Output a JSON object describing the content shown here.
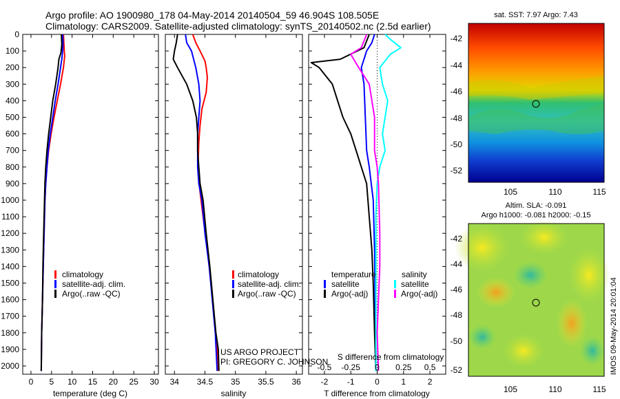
{
  "header": {
    "line1": "Argo profile: AO 1900980_178 04-May-2014 20140504_59 46.904S 108.505E",
    "line2": "Climatology: CARS2009. Satellite-adjusted climatology: synTS_20140502.nc (2.5d earlier)"
  },
  "colors": {
    "climatology": "#ff0000",
    "satellite": "#0000ff",
    "argo": "#000000",
    "salinity_satellite": "#00ffff",
    "salinity_argo": "#ff00ff"
  },
  "depth_ticks": [
    "0",
    "100",
    "200",
    "300",
    "400",
    "500",
    "600",
    "700",
    "800",
    "900",
    "1000",
    "1100",
    "1200",
    "1300",
    "1400",
    "1500",
    "1600",
    "1700",
    "1800",
    "1900",
    "2000"
  ],
  "credits": {
    "project": "US ARGO PROJECT",
    "pi": "PI: GREGORY C. JOHNSON",
    "stamp": "IMOS 09-May-2014 20:01:04"
  },
  "maps": {
    "sst": {
      "title": "sat. SST: 7.97 Argo: 7.43",
      "yticks": [
        "-42",
        "-44",
        "-46",
        "-48",
        "-50",
        "-52"
      ],
      "xticks": [
        "105",
        "110",
        "115"
      ]
    },
    "sla": {
      "title1": "Altim. SLA: -0.091",
      "title2": "Argo h1000: -0.081 h2000: -0.15",
      "yticks": [
        "-42",
        "-44",
        "-46",
        "-48",
        "-50",
        "-52"
      ],
      "xticks": [
        "105",
        "110",
        "115"
      ]
    }
  },
  "chart_data": [
    {
      "type": "line",
      "xlabel": "temperature (deg C)",
      "xticks": [
        "0",
        "5",
        "10",
        "15",
        "20",
        "25",
        "30"
      ],
      "xlim": [
        -2,
        31
      ],
      "ylim": [
        2050,
        0
      ],
      "legend": [
        "climatology",
        "satellite-adj. clim.",
        "Argo(..raw -QC)"
      ],
      "series": [
        {
          "name": "climatology",
          "color": "red",
          "points": [
            [
              7.9,
              0
            ],
            [
              8.0,
              50
            ],
            [
              8.1,
              100
            ],
            [
              8.2,
              130
            ],
            [
              7.9,
              200
            ],
            [
              7.2,
              300
            ],
            [
              6.4,
              400
            ],
            [
              5.6,
              500
            ],
            [
              4.9,
              600
            ],
            [
              4.3,
              700
            ],
            [
              3.9,
              800
            ],
            [
              3.6,
              900
            ],
            [
              3.4,
              1000
            ],
            [
              3.2,
              1200
            ],
            [
              3.0,
              1400
            ],
            [
              2.8,
              1600
            ],
            [
              2.6,
              1800
            ],
            [
              2.5,
              2030
            ]
          ]
        },
        {
          "name": "satellite-adj. clim.",
          "color": "blue",
          "points": [
            [
              7.7,
              0
            ],
            [
              7.8,
              50
            ],
            [
              7.7,
              100
            ],
            [
              7.5,
              150
            ],
            [
              7.2,
              200
            ],
            [
              6.6,
              300
            ],
            [
              5.9,
              400
            ],
            [
              5.3,
              500
            ],
            [
              4.7,
              600
            ],
            [
              4.2,
              700
            ],
            [
              3.9,
              800
            ],
            [
              3.6,
              900
            ],
            [
              3.4,
              1000
            ],
            [
              3.2,
              1200
            ],
            [
              3.0,
              1400
            ],
            [
              2.8,
              1600
            ],
            [
              2.6,
              1800
            ],
            [
              2.5,
              2030
            ]
          ]
        },
        {
          "name": "Argo(..raw -QC)",
          "color": "black",
          "points": [
            [
              7.4,
              0
            ],
            [
              7.5,
              60
            ],
            [
              7.3,
              110
            ],
            [
              6.8,
              150
            ],
            [
              6.6,
              200
            ],
            [
              6.0,
              300
            ],
            [
              5.3,
              400
            ],
            [
              4.8,
              500
            ],
            [
              4.3,
              600
            ],
            [
              3.9,
              700
            ],
            [
              3.6,
              800
            ],
            [
              3.4,
              900
            ],
            [
              3.3,
              1000
            ],
            [
              3.1,
              1200
            ],
            [
              2.9,
              1400
            ],
            [
              2.8,
              1600
            ],
            [
              2.6,
              1800
            ],
            [
              2.5,
              2030
            ]
          ]
        }
      ]
    },
    {
      "type": "line",
      "xlabel": "salinity",
      "xticks": [
        "34",
        "34.5",
        "35",
        "35.5",
        "36"
      ],
      "xlim": [
        33.85,
        36.1
      ],
      "ylim": [
        2050,
        0
      ],
      "legend": [
        "climatology",
        "satellite-adj. clim.",
        "Argo(..raw -QC)"
      ],
      "series": [
        {
          "name": "climatology",
          "color": "red",
          "points": [
            [
              34.3,
              0
            ],
            [
              34.35,
              50
            ],
            [
              34.42,
              100
            ],
            [
              34.5,
              160
            ],
            [
              34.52,
              200
            ],
            [
              34.54,
              260
            ],
            [
              34.52,
              350
            ],
            [
              34.45,
              450
            ],
            [
              34.42,
              550
            ],
            [
              34.4,
              650
            ],
            [
              34.39,
              750
            ],
            [
              34.39,
              850
            ],
            [
              34.42,
              950
            ],
            [
              34.47,
              1100
            ],
            [
              34.54,
              1300
            ],
            [
              34.6,
              1500
            ],
            [
              34.65,
              1700
            ],
            [
              34.7,
              1900
            ],
            [
              34.72,
              2030
            ]
          ]
        },
        {
          "name": "satellite-adj. clim.",
          "color": "blue",
          "points": [
            [
              34.18,
              0
            ],
            [
              34.2,
              50
            ],
            [
              34.28,
              100
            ],
            [
              34.35,
              200
            ],
            [
              34.4,
              300
            ],
            [
              34.42,
              400
            ],
            [
              34.4,
              500
            ],
            [
              34.38,
              600
            ],
            [
              34.38,
              700
            ],
            [
              34.38,
              800
            ],
            [
              34.4,
              900
            ],
            [
              34.45,
              1000
            ],
            [
              34.5,
              1200
            ],
            [
              34.57,
              1400
            ],
            [
              34.62,
              1600
            ],
            [
              34.67,
              1800
            ],
            [
              34.7,
              2030
            ]
          ]
        },
        {
          "name": "Argo(..raw -QC)",
          "color": "black",
          "points": [
            [
              34.05,
              0
            ],
            [
              34.03,
              50
            ],
            [
              34.0,
              100
            ],
            [
              33.98,
              150
            ],
            [
              34.05,
              200
            ],
            [
              34.2,
              300
            ],
            [
              34.3,
              400
            ],
            [
              34.36,
              500
            ],
            [
              34.38,
              600
            ],
            [
              34.38,
              700
            ],
            [
              34.4,
              800
            ],
            [
              34.42,
              900
            ],
            [
              34.47,
              1000
            ],
            [
              34.52,
              1200
            ],
            [
              34.58,
              1400
            ],
            [
              34.63,
              1600
            ],
            [
              34.68,
              1800
            ],
            [
              34.72,
              1900
            ],
            [
              34.73,
              2030
            ]
          ]
        }
      ]
    },
    {
      "type": "line",
      "xlabel": "T difference from climatology",
      "xlabel_top": "S difference from climatology",
      "xticks": [
        "-2",
        "-1",
        "0",
        "1",
        "2"
      ],
      "xticks_top": [
        "-0.5",
        "-0.25",
        "0",
        "0.25",
        "0.5"
      ],
      "xlim": [
        -2.6,
        2.6
      ],
      "ylim": [
        2050,
        0
      ],
      "legend_left_title": "temperature",
      "legend_right_title": "salinity",
      "legend": [
        "satellite",
        "Argo(-adj)",
        "satellite",
        "Argo(-adj)"
      ],
      "series": [
        {
          "name": "satellite",
          "group": "temperature",
          "color": "blue",
          "points": [
            [
              -0.1,
              0
            ],
            [
              -0.2,
              50
            ],
            [
              -0.4,
              100
            ],
            [
              -0.6,
              200
            ],
            [
              -0.5,
              300
            ],
            [
              -0.45,
              500
            ],
            [
              -0.4,
              700
            ],
            [
              -0.3,
              800
            ],
            [
              -0.15,
              1000
            ],
            [
              -0.1,
              1300
            ],
            [
              -0.08,
              1600
            ],
            [
              -0.05,
              1900
            ],
            [
              -0.05,
              2030
            ]
          ]
        },
        {
          "name": "Argo(-adj)",
          "group": "temperature",
          "color": "black",
          "points": [
            [
              -0.3,
              0
            ],
            [
              -0.5,
              80
            ],
            [
              -1.4,
              150
            ],
            [
              -2.5,
              170
            ],
            [
              -2.2,
              200
            ],
            [
              -1.7,
              300
            ],
            [
              -1.5,
              400
            ],
            [
              -1.3,
              500
            ],
            [
              -1.0,
              600
            ],
            [
              -0.8,
              700
            ],
            [
              -0.6,
              800
            ],
            [
              -0.4,
              900
            ],
            [
              -0.3,
              1100
            ],
            [
              -0.2,
              1300
            ],
            [
              -0.15,
              1500
            ],
            [
              -0.1,
              1800
            ],
            [
              -0.05,
              2030
            ]
          ]
        },
        {
          "name": "satellite",
          "group": "salinity",
          "color": "cyan",
          "points": [
            [
              0.3,
              0
            ],
            [
              0.5,
              30
            ],
            [
              0.9,
              80
            ],
            [
              0.5,
              120
            ],
            [
              0.1,
              200
            ],
            [
              0.2,
              300
            ],
            [
              0.4,
              400
            ],
            [
              0.3,
              500
            ],
            [
              0.2,
              600
            ],
            [
              0.3,
              700
            ],
            [
              0.1,
              800
            ],
            [
              0.0,
              900
            ],
            [
              -0.05,
              1100
            ],
            [
              -0.05,
              1500
            ],
            [
              -0.05,
              2030
            ]
          ]
        },
        {
          "name": "Argo(-adj)",
          "group": "salinity",
          "color": "magenta",
          "points": [
            [
              -0.4,
              0
            ],
            [
              -0.6,
              80
            ],
            [
              -1.0,
              120
            ],
            [
              -0.7,
              200
            ],
            [
              -0.3,
              300
            ],
            [
              -0.2,
              400
            ],
            [
              -0.1,
              500
            ],
            [
              -0.1,
              700
            ],
            [
              0.0,
              800
            ],
            [
              0.05,
              900
            ],
            [
              0.1,
              1200
            ],
            [
              0.1,
              1400
            ],
            [
              0.05,
              1600
            ],
            [
              0.0,
              1800
            ],
            [
              0.05,
              2030
            ]
          ]
        }
      ]
    }
  ]
}
